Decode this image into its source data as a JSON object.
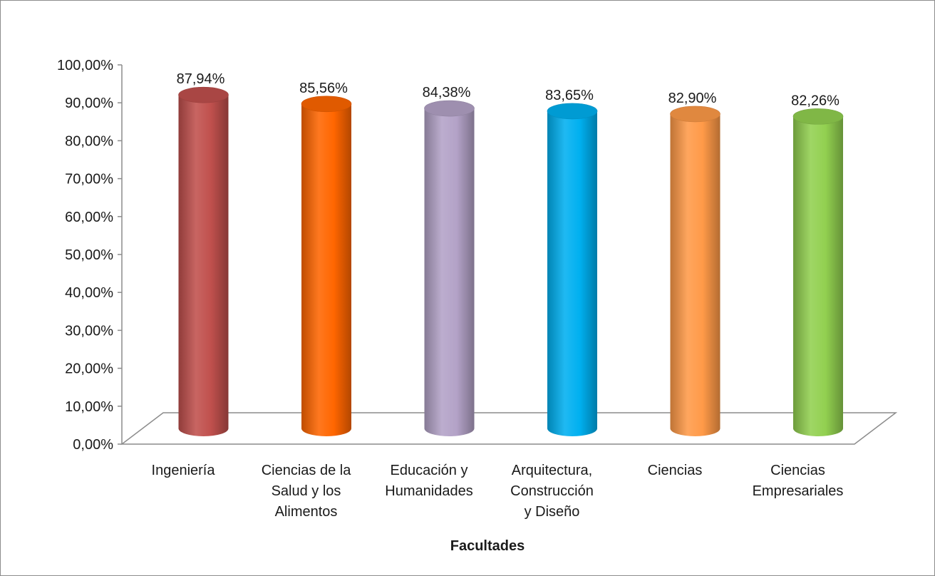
{
  "chart_data": {
    "type": "bar",
    "style": "3d-cylinder",
    "title": "",
    "xlabel": "Facultades",
    "ylabel": "",
    "ylim": [
      0,
      100
    ],
    "y_ticks": [
      "0,00%",
      "10,00%",
      "20,00%",
      "30,00%",
      "40,00%",
      "50,00%",
      "60,00%",
      "70,00%",
      "80,00%",
      "90,00%",
      "100,00%"
    ],
    "grid": false,
    "legend": "none",
    "categories": [
      [
        "Ingeniería"
      ],
      [
        "Ciencias de la",
        "Salud y los",
        "Alimentos"
      ],
      [
        "Educación y",
        "Humanidades"
      ],
      [
        "Arquitectura,",
        "Construcción",
        "y Diseño"
      ],
      [
        "Ciencias"
      ],
      [
        "Ciencias",
        "Empresariales"
      ]
    ],
    "values": [
      87.94,
      85.56,
      84.38,
      83.65,
      82.9,
      82.26
    ],
    "data_labels": [
      "87,94%",
      "85,56%",
      "84,38%",
      "83,65%",
      "82,90%",
      "82,26%"
    ],
    "colors": [
      "#c0504d",
      "#ff6600",
      "#b3a2c7",
      "#00b0f0",
      "#ff9a48",
      "#92d050"
    ]
  }
}
